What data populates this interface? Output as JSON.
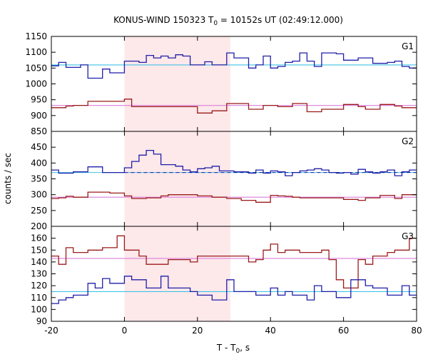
{
  "chart_data": {
    "type": "line",
    "title": "KONUS-WIND 150323 T",
    "title_sub": "0",
    "title_rest": " = 10152s UT (02:49:12.000)",
    "xlabel": "T - T",
    "xlabel_sub": "0",
    "xlabel_rest": ", s",
    "ylabel": "counts / sec",
    "xlim": [
      -20,
      80
    ],
    "x_ticks": [
      -20,
      0,
      20,
      40,
      60,
      80
    ],
    "highlight_interval": [
      0,
      29
    ],
    "highlight_color": "#fde8ea",
    "bin_edges": [
      -20,
      -18,
      -16,
      -14,
      -12,
      -10,
      -8,
      -6,
      -4,
      -2,
      0,
      2,
      4,
      6,
      8,
      10,
      12,
      14,
      16,
      18,
      20,
      22,
      24,
      26,
      28,
      30,
      32,
      34,
      36,
      38,
      40,
      42,
      44,
      46,
      48,
      50,
      52,
      54,
      56,
      58,
      60,
      62,
      64,
      66,
      68,
      70,
      72,
      74,
      76,
      78,
      80
    ],
    "panels": [
      {
        "name": "G1",
        "ylim": [
          850,
          1150
        ],
        "y_ticks": [
          850,
          900,
          950,
          1000,
          1050,
          1100,
          1150
        ],
        "series": [
          {
            "color": "#1f1fa8",
            "values": [
              1057,
              1068,
              1052,
              1052,
              1060,
              1018,
              1018,
              1047,
              1035,
              1035,
              1072,
              1072,
              1068,
              1090,
              1082,
              1088,
              1082,
              1092,
              1088,
              1060,
              1060,
              1070,
              1060,
              1060,
              1098,
              1082,
              1082,
              1050,
              1060,
              1088,
              1050,
              1055,
              1068,
              1072,
              1098,
              1072,
              1055,
              1098,
              1098,
              1095,
              1075,
              1075,
              1082,
              1082,
              1065,
              1065,
              1068,
              1072,
              1055,
              1050
            ]
          },
          {
            "color": "#9b1b1b",
            "values": [
              925,
              925,
              930,
              932,
              932,
              945,
              945,
              945,
              945,
              945,
              952,
              928,
              928,
              928,
              928,
              928,
              928,
              928,
              928,
              928,
              908,
              908,
              915,
              915,
              938,
              938,
              938,
              920,
              920,
              932,
              932,
              928,
              928,
              938,
              938,
              912,
              912,
              920,
              920,
              920,
              935,
              935,
              928,
              920,
              920,
              935,
              935,
              930,
              925,
              925
            ]
          }
        ],
        "backgrounds": [
          {
            "color": "#3fc3e6",
            "value": 1060,
            "dash": false
          },
          {
            "color": "#d97fd9",
            "value": 932,
            "dash": false
          }
        ]
      },
      {
        "name": "G2",
        "ylim": [
          200,
          500
        ],
        "y_ticks": [
          200,
          250,
          300,
          350,
          400,
          450
        ],
        "series": [
          {
            "color": "#1f1fa8",
            "values": [
              378,
              368,
              368,
              372,
              372,
              388,
              388,
              370,
              370,
              370,
              385,
              405,
              425,
              440,
              428,
              395,
              395,
              390,
              378,
              372,
              382,
              385,
              390,
              375,
              375,
              372,
              372,
              368,
              378,
              368,
              375,
              372,
              360,
              370,
              375,
              378,
              382,
              378,
              370,
              368,
              370,
              365,
              380,
              372,
              368,
              372,
              378,
              360,
              372,
              378
            ]
          },
          {
            "color": "#9b1b1b",
            "values": [
              288,
              290,
              295,
              292,
              292,
              308,
              308,
              308,
              305,
              305,
              296,
              288,
              288,
              290,
              290,
              296,
              300,
              300,
              300,
              300,
              296,
              296,
              292,
              292,
              288,
              288,
              282,
              282,
              276,
              276,
              298,
              296,
              295,
              292,
              290,
              290,
              290,
              290,
              290,
              290,
              285,
              285,
              282,
              290,
              290,
              298,
              298,
              288,
              300,
              300
            ]
          }
        ],
        "backgrounds": [
          {
            "color": "#3fc3e6",
            "value": 370,
            "dash": false
          },
          {
            "color": "#1f1fa8",
            "value": 370,
            "dash": true
          },
          {
            "color": "#d97fd9",
            "value": 292,
            "dash": false
          }
        ]
      },
      {
        "name": "G3",
        "ylim": [
          90,
          170
        ],
        "y_ticks": [
          90,
          100,
          110,
          120,
          130,
          140,
          150,
          160
        ],
        "series": [
          {
            "color": "#9b1b1b",
            "values": [
              145,
              138,
              152,
              148,
              148,
              150,
              150,
              152,
              152,
              162,
              150,
              150,
              145,
              138,
              138,
              138,
              142,
              142,
              142,
              140,
              145,
              145,
              145,
              145,
              145,
              145,
              145,
              140,
              142,
              150,
              155,
              148,
              150,
              150,
              148,
              148,
              148,
              150,
              142,
              125,
              118,
              118,
              142,
              138,
              145,
              145,
              148,
              150,
              150,
              160
            ]
          },
          {
            "color": "#1f1fa8",
            "values": [
              105,
              108,
              110,
              112,
              112,
              122,
              118,
              126,
              122,
              122,
              128,
              125,
              125,
              118,
              118,
              128,
              118,
              118,
              118,
              115,
              112,
              112,
              108,
              108,
              125,
              115,
              115,
              115,
              112,
              112,
              118,
              112,
              115,
              112,
              112,
              108,
              120,
              115,
              115,
              110,
              110,
              125,
              125,
              120,
              118,
              118,
              112,
              112,
              120,
              112
            ]
          }
        ],
        "backgrounds": [
          {
            "color": "#d97fd9",
            "value": 143,
            "dash": false
          },
          {
            "color": "#3fc3e6",
            "value": 115,
            "dash": false
          }
        ]
      }
    ]
  }
}
